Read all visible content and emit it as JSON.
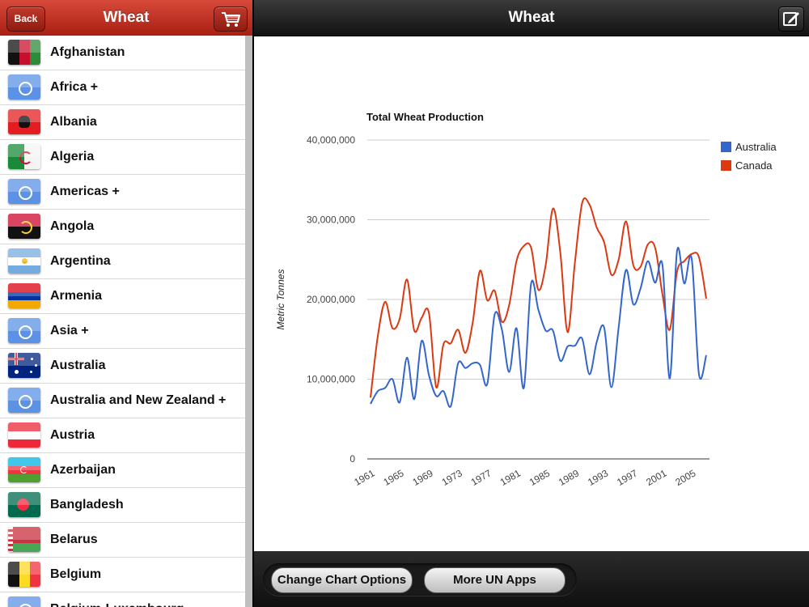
{
  "left_nav": {
    "title": "Wheat",
    "back_label": "Back",
    "cart_icon": "cart-icon"
  },
  "countries": [
    {
      "name": "Afghanistan",
      "flag": "flag-afghanistan"
    },
    {
      "name": "Africa +",
      "flag": "flag-un"
    },
    {
      "name": "Albania",
      "flag": "flag-albania"
    },
    {
      "name": "Algeria",
      "flag": "flag-algeria"
    },
    {
      "name": "Americas +",
      "flag": "flag-un"
    },
    {
      "name": "Angola",
      "flag": "flag-angola"
    },
    {
      "name": "Argentina",
      "flag": "flag-argentina"
    },
    {
      "name": "Armenia",
      "flag": "flag-armenia"
    },
    {
      "name": "Asia +",
      "flag": "flag-un"
    },
    {
      "name": "Australia",
      "flag": "flag-australia"
    },
    {
      "name": "Australia and New Zealand +",
      "flag": "flag-un"
    },
    {
      "name": "Austria",
      "flag": "flag-austria"
    },
    {
      "name": "Azerbaijan",
      "flag": "flag-azerbaijan"
    },
    {
      "name": "Bangladesh",
      "flag": "flag-bangladesh"
    },
    {
      "name": "Belarus",
      "flag": "flag-belarus"
    },
    {
      "name": "Belgium",
      "flag": "flag-belgium"
    },
    {
      "name": "Belgium-Luxembourg",
      "flag": "flag-un"
    }
  ],
  "right_nav": {
    "title": "Wheat",
    "edit_icon": "compose-icon"
  },
  "toolbar": {
    "chart_options_label": "Change Chart Options",
    "more_apps_label": "More UN Apps"
  },
  "colors": {
    "australia": "#3366cc",
    "canada": "#dc3912"
  },
  "chart_data": {
    "type": "line",
    "title": "Total Wheat Production",
    "xlabel": "",
    "ylabel": "Metric Tonnes",
    "ylim": [
      0,
      40000000
    ],
    "yticks": [
      "0",
      "10,000,000",
      "20,000,000",
      "30,000,000",
      "40,000,000"
    ],
    "xtick_labels": [
      "1961",
      "1965",
      "1969",
      "1973",
      "1977",
      "1981",
      "1985",
      "1989",
      "1993",
      "1997",
      "2001",
      "2005"
    ],
    "x": [
      1961,
      1962,
      1963,
      1964,
      1965,
      1966,
      1967,
      1968,
      1969,
      1970,
      1971,
      1972,
      1973,
      1974,
      1975,
      1976,
      1977,
      1978,
      1979,
      1980,
      1981,
      1982,
      1983,
      1984,
      1985,
      1986,
      1987,
      1988,
      1989,
      1990,
      1991,
      1992,
      1993,
      1994,
      1995,
      1996,
      1997,
      1998,
      1999,
      2000,
      2001,
      2002,
      2003,
      2004,
      2005,
      2006,
      2007
    ],
    "grid": true,
    "legend_position": "top-right",
    "series": [
      {
        "name": "Australia",
        "color": "#3366cc",
        "values": [
          6900000,
          8500000,
          8900000,
          10000000,
          7100000,
          12700000,
          7500000,
          14800000,
          10500000,
          7900000,
          8500000,
          6600000,
          12000000,
          11400000,
          12000000,
          11800000,
          9400000,
          18100000,
          16200000,
          10900000,
          16400000,
          8900000,
          22000000,
          18700000,
          16100000,
          16100000,
          12300000,
          14100000,
          14200000,
          15100000,
          10600000,
          14700000,
          16500000,
          9000000,
          16500000,
          23700000,
          19400000,
          21400000,
          24800000,
          22100000,
          24300000,
          10100000,
          26100000,
          22000000,
          25100000,
          10600000,
          13000000
        ]
      },
      {
        "name": "Canada",
        "color": "#dc3912",
        "values": [
          7700000,
          15400000,
          19700000,
          16400000,
          17600000,
          22500000,
          16100000,
          17700000,
          18300000,
          9000000,
          14400000,
          14500000,
          16200000,
          13300000,
          17100000,
          23600000,
          19900000,
          21100000,
          17200000,
          19300000,
          24800000,
          26700000,
          26500000,
          21200000,
          24300000,
          31400000,
          25900000,
          15900000,
          24600000,
          32100000,
          31900000,
          29000000,
          27200000,
          23100000,
          25000000,
          29800000,
          24300000,
          24100000,
          26900000,
          26500000,
          20600000,
          16200000,
          23500000,
          24800000,
          25700000,
          25300000,
          20100000
        ]
      }
    ]
  }
}
